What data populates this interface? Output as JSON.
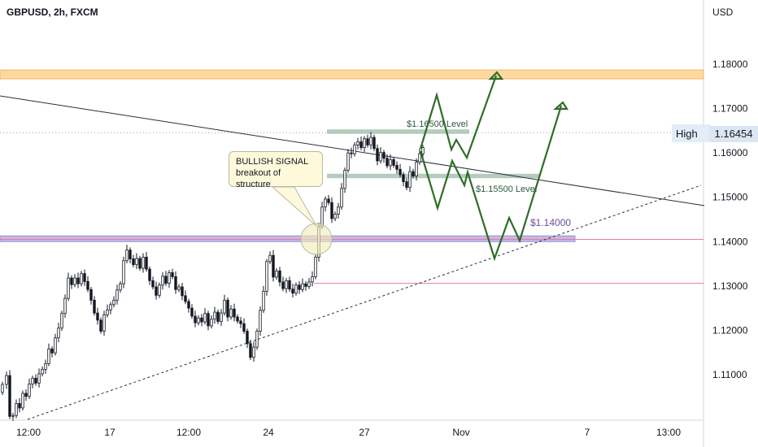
{
  "header": {
    "title": "GBPUSD, 2h, FXCM",
    "unit": "USD"
  },
  "badges": {
    "high_label": "High",
    "high_value": "1.16454"
  },
  "callout": {
    "line1": "BULLISH SIGNAL",
    "line2": "breakout of structure"
  },
  "chart_data": {
    "type": "candlestick",
    "title": "GBPUSD, 2h, FXCM",
    "y_axis": {
      "unit": "USD",
      "ticks": [
        1.11,
        1.12,
        1.13,
        1.14,
        1.15,
        1.16,
        1.17,
        1.18
      ],
      "tick_labels": [
        "1.11000",
        "1.12000",
        "1.13000",
        "1.14000",
        "1.15000",
        "1.16000",
        "1.17000",
        "1.18000"
      ],
      "range": [
        1.1,
        1.1945
      ]
    },
    "x_axis": {
      "tick_labels": [
        "12:00",
        "17",
        "12:00",
        "24",
        "27",
        "Nov",
        "7",
        "13:00"
      ]
    },
    "levels": [
      {
        "label": "$1.16500 Level",
        "value": 1.165
      },
      {
        "label": "$1.15500 Level",
        "value": 1.155
      },
      {
        "label": "$1.14000",
        "value": 1.14
      }
    ],
    "resistance_zone": [
      1.1767,
      1.1787
    ],
    "support_zone": [
      1.14,
      1.1413
    ],
    "high_marker": 1.16454,
    "red_lines": [
      1.1405,
      1.1306
    ],
    "colors": {
      "up": "#26a69a",
      "down": "#ef5350",
      "candle": "#131722",
      "resistance_zone": "#fdd9a0",
      "support_zone": "#c5b8e6",
      "projection": "#2f6d26",
      "level_zone": "#a7c3b0"
    }
  }
}
